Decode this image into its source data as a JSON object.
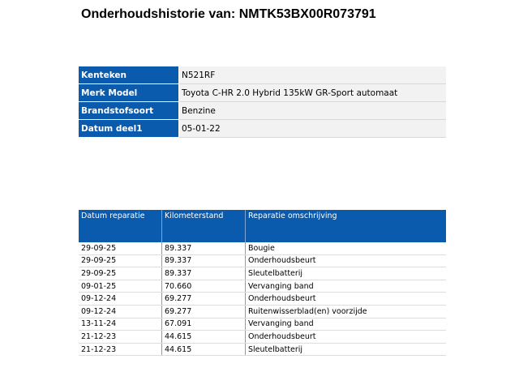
{
  "title": "Onderhoudshistorie van: NMTK53BX00R073791",
  "vehicle": [
    {
      "label": "Kenteken",
      "value": "N521RF"
    },
    {
      "label": "Merk Model",
      "value": "Toyota C-HR 2.0 Hybrid 135kW GR-Sport automaat"
    },
    {
      "label": "Brandstofsoort",
      "value": "Benzine"
    },
    {
      "label": "Datum deel1",
      "value": "05-01-22"
    }
  ],
  "repairs": {
    "headers": [
      "Datum reparatie",
      "Kilometerstand",
      "Reparatie omschrijving"
    ],
    "rows": [
      [
        "29-09-25",
        "89.337",
        "Bougie"
      ],
      [
        "29-09-25",
        "89.337",
        "Onderhoudsbeurt"
      ],
      [
        "29-09-25",
        "89.337",
        "Sleutelbatterij"
      ],
      [
        "09-01-25",
        "70.660",
        "Vervanging band"
      ],
      [
        "09-12-24",
        "69.277",
        "Onderhoudsbeurt"
      ],
      [
        "09-12-24",
        "69.277",
        "Ruitenwisserblad(en) voorzijde"
      ],
      [
        "13-11-24",
        "67.091",
        "Vervanging band"
      ],
      [
        "21-12-23",
        "44.615",
        "Onderhoudsbeurt"
      ],
      [
        "21-12-23",
        "44.615",
        "Sleutelbatterij"
      ]
    ]
  }
}
